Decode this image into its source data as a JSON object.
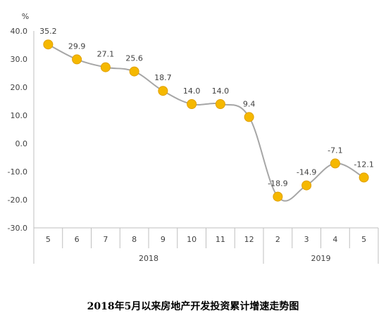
{
  "chart_data": {
    "type": "line",
    "title": "2018年5月以来房地产开发投资累计增速走势图",
    "unit": "%",
    "categories": [
      "5",
      "6",
      "7",
      "8",
      "9",
      "10",
      "11",
      "12",
      "2",
      "3",
      "4",
      "5"
    ],
    "year_groups": [
      {
        "label": "2018",
        "count": 8
      },
      {
        "label": "2019",
        "count": 4
      }
    ],
    "series": [
      {
        "values": [
          35.2,
          29.9,
          27.1,
          25.6,
          18.7,
          14.0,
          14.0,
          9.4,
          -18.9,
          -14.9,
          -7.1,
          -12.1
        ],
        "labels": [
          "35.2",
          "29.9",
          "27.1",
          "25.6",
          "18.7",
          "14.0",
          "14.0",
          "9.4",
          "-18.9",
          "-14.9",
          "-7.1",
          "-12.1"
        ]
      }
    ],
    "ylim": [
      -30,
      40
    ],
    "yticks": [
      "40.0",
      "30.0",
      "20.0",
      "10.0",
      "0.0",
      "-10.0",
      "-20.0",
      "-30.0"
    ],
    "ytick_values": [
      40,
      30,
      20,
      10,
      0,
      -10,
      -20,
      -30
    ],
    "grid": false,
    "legend": "none",
    "colors": {
      "line": "#a6a6a6",
      "marker_fill": "#f5b800",
      "marker_stroke": "#e0a000",
      "axis": "#bfbfbf",
      "text": "#404040"
    }
  }
}
